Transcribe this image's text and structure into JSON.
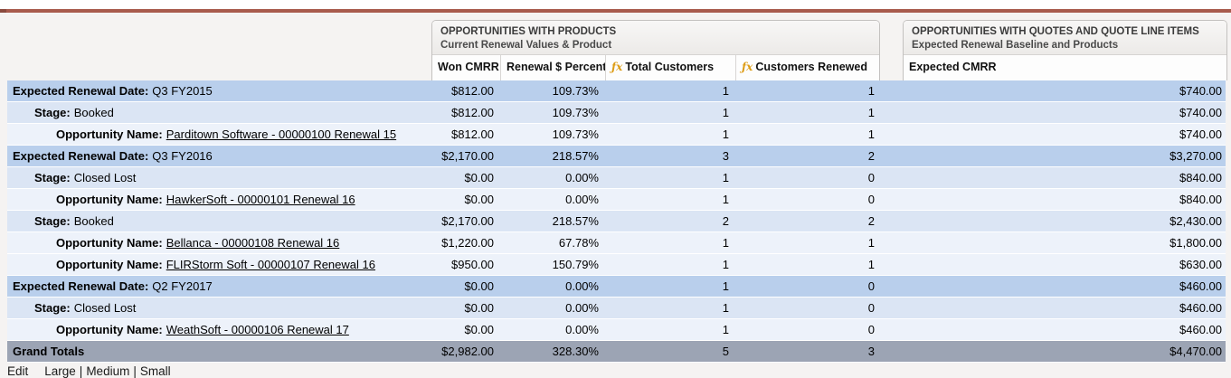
{
  "accent": {
    "top_bar_color": "#a85b4d",
    "group_level1_color": "#b9cfec",
    "group_level2_color": "#dbe5f4",
    "group_level3_color": "#edf2fa",
    "grand_total_color": "#9ca4b4",
    "formula_icon_color": "#dd9d18"
  },
  "formula_icon": "ƒx",
  "blocks": [
    {
      "title": "OPPORTUNITIES WITH PRODUCTS",
      "subtitle": "Current Renewal Values & Product",
      "columns": [
        {
          "label": "Won CMRR",
          "fx": false
        },
        {
          "label": "Renewal $ Percent",
          "fx": false
        },
        {
          "label": "Total Customers",
          "fx": true
        },
        {
          "label": "Customers Renewed",
          "fx": true
        }
      ]
    },
    {
      "title": "OPPORTUNITIES WITH QUOTES AND QUOTE LINE ITEMS",
      "subtitle": "Expected Renewal Baseline and Products",
      "columns": [
        {
          "label": "Expected CMRR",
          "fx": false
        }
      ]
    }
  ],
  "rows": [
    {
      "level": "lvl1",
      "prefix": "Expected Renewal Date:",
      "value": "Q3 FY2015",
      "is_link": false,
      "won_cmrr": "$812.00",
      "renewal_pct": "109.73%",
      "total_customers": "1",
      "customers_renewed": "1",
      "expected_cmrr": "$740.00"
    },
    {
      "level": "lvl2",
      "prefix": "Stage:",
      "value": "Booked",
      "is_link": false,
      "won_cmrr": "$812.00",
      "renewal_pct": "109.73%",
      "total_customers": "1",
      "customers_renewed": "1",
      "expected_cmrr": "$740.00"
    },
    {
      "level": "lvl3",
      "prefix": "Opportunity Name:",
      "value": "Parditown Software - 00000100 Renewal 15",
      "is_link": true,
      "won_cmrr": "$812.00",
      "renewal_pct": "109.73%",
      "total_customers": "1",
      "customers_renewed": "1",
      "expected_cmrr": "$740.00"
    },
    {
      "level": "lvl1",
      "prefix": "Expected Renewal Date:",
      "value": "Q3 FY2016",
      "is_link": false,
      "won_cmrr": "$2,170.00",
      "renewal_pct": "218.57%",
      "total_customers": "3",
      "customers_renewed": "2",
      "expected_cmrr": "$3,270.00"
    },
    {
      "level": "lvl2",
      "prefix": "Stage:",
      "value": "Closed Lost",
      "is_link": false,
      "won_cmrr": "$0.00",
      "renewal_pct": "0.00%",
      "total_customers": "1",
      "customers_renewed": "0",
      "expected_cmrr": "$840.00"
    },
    {
      "level": "lvl3",
      "prefix": "Opportunity Name:",
      "value": "HawkerSoft - 00000101 Renewal 16",
      "is_link": true,
      "won_cmrr": "$0.00",
      "renewal_pct": "0.00%",
      "total_customers": "1",
      "customers_renewed": "0",
      "expected_cmrr": "$840.00"
    },
    {
      "level": "lvl2",
      "prefix": "Stage:",
      "value": "Booked",
      "is_link": false,
      "won_cmrr": "$2,170.00",
      "renewal_pct": "218.57%",
      "total_customers": "2",
      "customers_renewed": "2",
      "expected_cmrr": "$2,430.00"
    },
    {
      "level": "lvl3",
      "prefix": "Opportunity Name:",
      "value": "Bellanca - 00000108 Renewal 16",
      "is_link": true,
      "won_cmrr": "$1,220.00",
      "renewal_pct": "67.78%",
      "total_customers": "1",
      "customers_renewed": "1",
      "expected_cmrr": "$1,800.00"
    },
    {
      "level": "lvl3",
      "prefix": "Opportunity Name:",
      "value": "FLIRStorm Soft - 00000107 Renewal 16",
      "is_link": true,
      "won_cmrr": "$950.00",
      "renewal_pct": "150.79%",
      "total_customers": "1",
      "customers_renewed": "1",
      "expected_cmrr": "$630.00"
    },
    {
      "level": "lvl1",
      "prefix": "Expected Renewal Date:",
      "value": "Q2 FY2017",
      "is_link": false,
      "won_cmrr": "$0.00",
      "renewal_pct": "0.00%",
      "total_customers": "1",
      "customers_renewed": "0",
      "expected_cmrr": "$460.00"
    },
    {
      "level": "lvl2",
      "prefix": "Stage:",
      "value": "Closed Lost",
      "is_link": false,
      "won_cmrr": "$0.00",
      "renewal_pct": "0.00%",
      "total_customers": "1",
      "customers_renewed": "0",
      "expected_cmrr": "$460.00"
    },
    {
      "level": "lvl3",
      "prefix": "Opportunity Name:",
      "value": "WeathSoft - 00000106 Renewal 17",
      "is_link": true,
      "won_cmrr": "$0.00",
      "renewal_pct": "0.00%",
      "total_customers": "1",
      "customers_renewed": "0",
      "expected_cmrr": "$460.00"
    },
    {
      "level": "grand",
      "prefix": "Grand Totals",
      "value": "",
      "is_link": false,
      "won_cmrr": "$2,982.00",
      "renewal_pct": "328.30%",
      "total_customers": "5",
      "customers_renewed": "3",
      "expected_cmrr": "$4,470.00"
    }
  ],
  "footer": {
    "edit": "Edit",
    "sizes": [
      "Large",
      "Medium",
      "Small"
    ],
    "separator": "|"
  }
}
